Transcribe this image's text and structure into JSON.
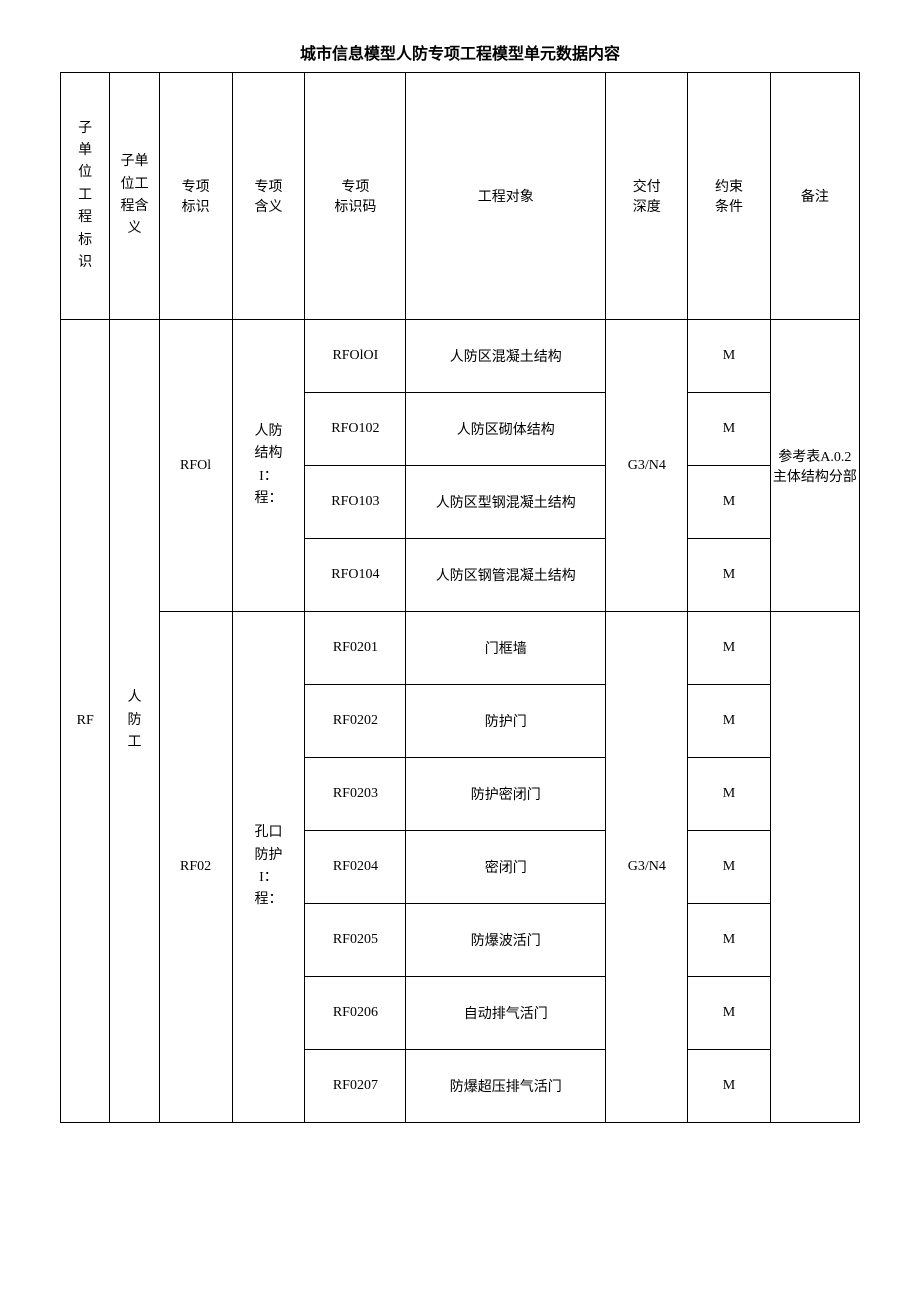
{
  "title": "城市信息模型人防专项工程模型单元数据内容",
  "columns": [
    "子单位工程标识",
    "子单位工程含义",
    "专项\n标识",
    "专项\n含义",
    "专项\n标识码",
    "工程对象",
    "交付\n深度",
    "约束\n条件",
    "备注"
  ],
  "sub_unit_id": "RF",
  "sub_unit_meaning": "人防工",
  "groups": [
    {
      "special_id": "RFOl",
      "special_meaning": "人防结构I：程：",
      "delivery_depth": "G3/N4",
      "remark": "参考表A.0.2主体结构分部",
      "rows": [
        {
          "code": "RFOlOI",
          "object": "人防区混凝土结构",
          "constraint": "M"
        },
        {
          "code": "RFO102",
          "object": "人防区砌体结构",
          "constraint": "M"
        },
        {
          "code": "RFO103",
          "object": "人防区型钢混凝土结构",
          "constraint": "M"
        },
        {
          "code": "RFO104",
          "object": "人防区钢管混凝土结构",
          "constraint": "M"
        }
      ]
    },
    {
      "special_id": "RF02",
      "special_meaning": "孔口防护I：程：",
      "delivery_depth": "G3/N4",
      "remark": "",
      "rows": [
        {
          "code": "RF0201",
          "object": "门框墙",
          "constraint": "M"
        },
        {
          "code": "RF0202",
          "object": "防护门",
          "constraint": "M"
        },
        {
          "code": "RF0203",
          "object": "防护密闭门",
          "constraint": "M"
        },
        {
          "code": "RF0204",
          "object": "密闭门",
          "constraint": "M"
        },
        {
          "code": "RF0205",
          "object": "防爆波活门",
          "constraint": "M"
        },
        {
          "code": "RF0206",
          "object": "自动排气活门",
          "constraint": "M"
        },
        {
          "code": "RF0207",
          "object": "防爆超压排气活门",
          "constraint": "M"
        }
      ]
    }
  ],
  "style": {
    "background_color": "#ffffff",
    "border_color": "#000000",
    "text_color": "#000000",
    "title_fontsize": 16,
    "cell_fontsize": 14
  }
}
